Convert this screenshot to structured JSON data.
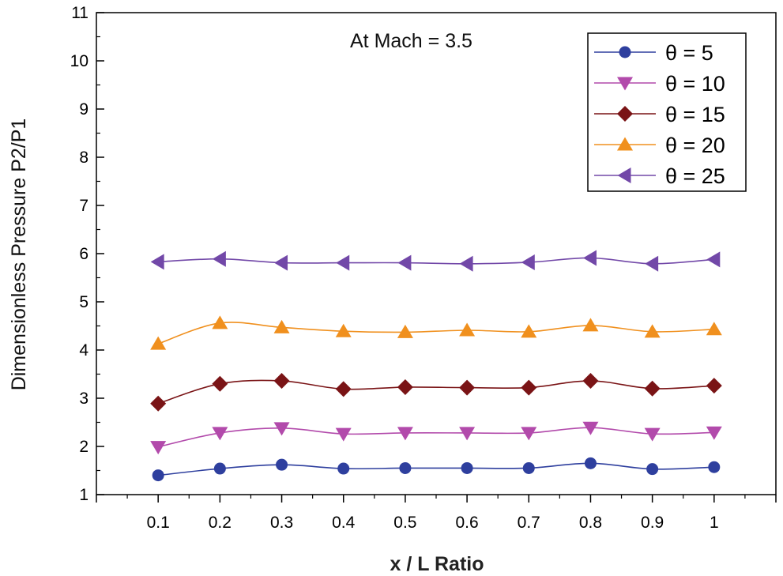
{
  "chart_data": {
    "type": "line",
    "title": "",
    "annotation": "At Mach = 3.5",
    "xlabel": "x / L Ratio",
    "ylabel": "Dimensionless Pressure P2/P1",
    "x": [
      0.1,
      0.2,
      0.3,
      0.4,
      0.5,
      0.6,
      0.7,
      0.8,
      0.9,
      1.0
    ],
    "xtick_labels": [
      "0.1",
      "0.2",
      "0.3",
      "0.4",
      "0.5",
      "0.6",
      "0.7",
      "0.8",
      "0.9",
      "1"
    ],
    "xlim": [
      0,
      1.1
    ],
    "ylim": [
      1,
      11
    ],
    "yticks": [
      1,
      2,
      3,
      4,
      5,
      6,
      7,
      8,
      9,
      10,
      11
    ],
    "ytick_labels": [
      "1",
      "2",
      "3",
      "4",
      "5",
      "6",
      "7",
      "8",
      "9",
      "10",
      "11"
    ],
    "grid": false,
    "legend_position": "top-right",
    "series": [
      {
        "name": "θ = 5",
        "marker": "circle",
        "color": "#2e3f9e",
        "values": [
          1.4,
          1.54,
          1.62,
          1.54,
          1.55,
          1.55,
          1.55,
          1.65,
          1.53,
          1.57
        ]
      },
      {
        "name": "θ = 10",
        "marker": "triangle-down",
        "color": "#b24aab",
        "values": [
          1.99,
          2.28,
          2.38,
          2.26,
          2.28,
          2.28,
          2.28,
          2.39,
          2.26,
          2.29
        ]
      },
      {
        "name": "θ = 15",
        "marker": "diamond",
        "color": "#7a1416",
        "values": [
          2.89,
          3.3,
          3.36,
          3.19,
          3.23,
          3.22,
          3.22,
          3.36,
          3.2,
          3.26
        ]
      },
      {
        "name": "θ = 20",
        "marker": "triangle-up",
        "color": "#f0901e",
        "values": [
          4.13,
          4.56,
          4.47,
          4.39,
          4.37,
          4.41,
          4.38,
          4.51,
          4.38,
          4.43
        ]
      },
      {
        "name": "θ = 25",
        "marker": "triangle-left",
        "color": "#7248a8",
        "values": [
          5.83,
          5.89,
          5.81,
          5.81,
          5.81,
          5.79,
          5.82,
          5.91,
          5.79,
          5.88
        ]
      }
    ]
  }
}
